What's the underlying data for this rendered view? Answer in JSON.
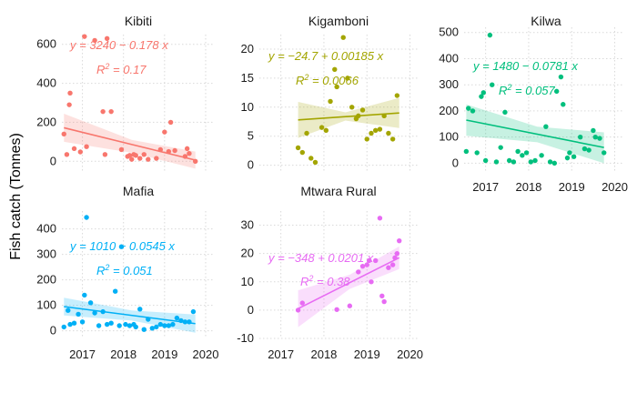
{
  "chart_data": {
    "type": "scatter",
    "ylabel": "Fish catch (Tonnes)",
    "panels": [
      {
        "title": "Kibiti",
        "color": "#F8766D",
        "equation": "y = 3240 − 0.178 x",
        "r2_value": "= 0.17",
        "xlim": [
          2016.5,
          2020.2
        ],
        "ylim": [
          -50,
          650
        ],
        "xticks": [
          2017,
          2018,
          2019,
          2020
        ],
        "xtick_labels": [],
        "yticks": [
          0,
          200,
          400,
          600
        ],
        "fit": {
          "x": [
            2016.55,
            2019.75
          ],
          "y": [
            172,
            6
          ],
          "band_lo": [
            100,
            -38
          ],
          "band_hi": [
            244,
            50
          ],
          "band_mid": [
            2018.2,
            44,
            110
          ]
        },
        "points": [
          [
            2016.55,
            140
          ],
          [
            2016.62,
            35
          ],
          [
            2016.68,
            290
          ],
          [
            2016.7,
            350
          ],
          [
            2016.8,
            65
          ],
          [
            2016.95,
            48
          ],
          [
            2017.05,
            640
          ],
          [
            2017.1,
            75
          ],
          [
            2017.3,
            620
          ],
          [
            2017.5,
            255
          ],
          [
            2017.55,
            35
          ],
          [
            2017.6,
            630
          ],
          [
            2017.7,
            255
          ],
          [
            2017.95,
            60
          ],
          [
            2018.1,
            25
          ],
          [
            2018.15,
            30
          ],
          [
            2018.2,
            10
          ],
          [
            2018.25,
            35
          ],
          [
            2018.3,
            30
          ],
          [
            2018.4,
            15
          ],
          [
            2018.5,
            35
          ],
          [
            2018.6,
            10
          ],
          [
            2018.8,
            15
          ],
          [
            2018.9,
            60
          ],
          [
            2019.0,
            150
          ],
          [
            2019.1,
            50
          ],
          [
            2019.15,
            200
          ],
          [
            2019.25,
            55
          ],
          [
            2019.5,
            25
          ],
          [
            2019.55,
            65
          ],
          [
            2019.6,
            40
          ],
          [
            2019.75,
            0
          ]
        ]
      },
      {
        "title": "Kigamboni",
        "color": "#A3A500",
        "equation": "y = −24.7 + 0.00185 x",
        "r2_value": "= 0.0066",
        "xlim": [
          2016.5,
          2020.2
        ],
        "ylim": [
          -1,
          22.5
        ],
        "xticks": [
          2017,
          2018,
          2019,
          2020
        ],
        "xtick_labels": [],
        "yticks": [
          0,
          5,
          10,
          15,
          20
        ],
        "fit": {
          "x": [
            2017.4,
            2019.75
          ],
          "y": [
            7.8,
            9.0
          ],
          "band_lo": [
            4.7,
            6.4
          ],
          "band_hi": [
            10.9,
            11.6
          ],
          "band_mid": [
            2018.5,
            7.7,
            9.1
          ]
        },
        "points": [
          [
            2017.4,
            3.0
          ],
          [
            2017.5,
            2.2
          ],
          [
            2017.6,
            5.5
          ],
          [
            2017.7,
            1.2
          ],
          [
            2017.8,
            0.5
          ],
          [
            2017.95,
            6.5
          ],
          [
            2018.05,
            6.0
          ],
          [
            2018.15,
            11.0
          ],
          [
            2018.25,
            16.5
          ],
          [
            2018.3,
            13.5
          ],
          [
            2018.45,
            22.0
          ],
          [
            2018.55,
            15.0
          ],
          [
            2018.65,
            10.0
          ],
          [
            2018.75,
            8.0
          ],
          [
            2018.8,
            8.5
          ],
          [
            2018.9,
            9.5
          ],
          [
            2019.0,
            4.5
          ],
          [
            2019.1,
            5.5
          ],
          [
            2019.2,
            6.0
          ],
          [
            2019.3,
            6.2
          ],
          [
            2019.4,
            8.5
          ],
          [
            2019.5,
            5.5
          ],
          [
            2019.6,
            4.5
          ],
          [
            2019.7,
            12.0
          ]
        ]
      },
      {
        "title": "Kilwa",
        "color": "#00BF7D",
        "equation": "y = 1480 − 0.0781 x",
        "r2_value": "= 0.057",
        "xlim": [
          2016.5,
          2020.2
        ],
        "ylim": [
          -30,
          520
        ],
        "xticks": [
          2017,
          2018,
          2019,
          2020
        ],
        "xtick_labels": [
          "2017",
          "2018",
          "2019",
          "2020"
        ],
        "yticks": [
          0,
          100,
          200,
          300,
          400,
          500
        ],
        "fit": {
          "x": [
            2016.55,
            2019.75
          ],
          "y": [
            165,
            60
          ],
          "band_lo": [
            105,
            0
          ],
          "band_hi": [
            225,
            118
          ],
          "band_mid": [
            2018.2,
            80,
            140
          ]
        },
        "points": [
          [
            2016.55,
            45
          ],
          [
            2016.6,
            210
          ],
          [
            2016.7,
            200
          ],
          [
            2016.8,
            40
          ],
          [
            2016.9,
            255
          ],
          [
            2016.95,
            270
          ],
          [
            2017.0,
            10
          ],
          [
            2017.1,
            490
          ],
          [
            2017.15,
            300
          ],
          [
            2017.25,
            5
          ],
          [
            2017.35,
            60
          ],
          [
            2017.45,
            195
          ],
          [
            2017.55,
            10
          ],
          [
            2017.65,
            5
          ],
          [
            2017.75,
            45
          ],
          [
            2017.85,
            30
          ],
          [
            2017.95,
            40
          ],
          [
            2018.05,
            5
          ],
          [
            2018.15,
            10
          ],
          [
            2018.3,
            30
          ],
          [
            2018.4,
            140
          ],
          [
            2018.5,
            5
          ],
          [
            2018.6,
            0
          ],
          [
            2018.65,
            275
          ],
          [
            2018.75,
            330
          ],
          [
            2018.8,
            225
          ],
          [
            2018.9,
            20
          ],
          [
            2018.95,
            40
          ],
          [
            2019.05,
            25
          ],
          [
            2019.2,
            100
          ],
          [
            2019.3,
            55
          ],
          [
            2019.4,
            50
          ],
          [
            2019.5,
            125
          ],
          [
            2019.55,
            100
          ],
          [
            2019.65,
            95
          ],
          [
            2019.75,
            40
          ]
        ]
      },
      {
        "title": "Mafia",
        "color": "#00B0F6",
        "equation": "y = 1010 − 0.0545 x",
        "r2_value": "= 0.051",
        "xlim": [
          2016.5,
          2020.2
        ],
        "ylim": [
          -30,
          470
        ],
        "xticks": [
          2017,
          2018,
          2019,
          2020
        ],
        "xtick_labels": [
          "2017",
          "2018",
          "2019",
          "2020"
        ],
        "yticks": [
          0,
          100,
          200,
          300,
          400
        ],
        "fit": {
          "x": [
            2016.55,
            2019.75
          ],
          "y": [
            95,
            28
          ],
          "band_lo": [
            60,
            -8
          ],
          "band_hi": [
            130,
            64
          ],
          "band_mid": [
            2018.2,
            40,
            80
          ]
        },
        "points": [
          [
            2016.55,
            15
          ],
          [
            2016.65,
            80
          ],
          [
            2016.7,
            25
          ],
          [
            2016.8,
            30
          ],
          [
            2016.9,
            65
          ],
          [
            2017.0,
            35
          ],
          [
            2017.05,
            140
          ],
          [
            2017.1,
            445
          ],
          [
            2017.2,
            110
          ],
          [
            2017.3,
            70
          ],
          [
            2017.4,
            20
          ],
          [
            2017.5,
            75
          ],
          [
            2017.6,
            25
          ],
          [
            2017.7,
            30
          ],
          [
            2017.8,
            155
          ],
          [
            2017.9,
            20
          ],
          [
            2017.95,
            330
          ],
          [
            2018.05,
            25
          ],
          [
            2018.15,
            20
          ],
          [
            2018.25,
            25
          ],
          [
            2018.3,
            15
          ],
          [
            2018.4,
            85
          ],
          [
            2018.5,
            5
          ],
          [
            2018.6,
            45
          ],
          [
            2018.7,
            10
          ],
          [
            2018.8,
            15
          ],
          [
            2018.9,
            25
          ],
          [
            2019.0,
            20
          ],
          [
            2019.1,
            20
          ],
          [
            2019.2,
            25
          ],
          [
            2019.3,
            50
          ],
          [
            2019.4,
            40
          ],
          [
            2019.5,
            35
          ],
          [
            2019.6,
            35
          ],
          [
            2019.7,
            75
          ]
        ]
      },
      {
        "title": "Mtwara Rural",
        "color": "#E76BF3",
        "equation": "y = −348 + 0.0201 x",
        "r2_value": "= 0.38",
        "xlim": [
          2016.5,
          2020.2
        ],
        "ylim": [
          -10,
          35
        ],
        "xticks": [
          2017,
          2018,
          2019,
          2020
        ],
        "xtick_labels": [
          "2017",
          "2018",
          "2019",
          "2020"
        ],
        "yticks": [
          -10,
          0,
          10,
          20,
          30
        ],
        "fit": {
          "x": [
            2017.4,
            2019.75
          ],
          "y": [
            0.5,
            18.5
          ],
          "band_lo": [
            -6,
            14.5
          ],
          "band_hi": [
            7,
            22.5
          ],
          "band_mid": [
            2018.6,
            7.5,
            12.5
          ]
        },
        "points": [
          [
            2017.4,
            0.0
          ],
          [
            2017.5,
            2.5
          ],
          [
            2018.3,
            0.2
          ],
          [
            2018.6,
            1.5
          ],
          [
            2018.8,
            13.5
          ],
          [
            2018.9,
            15.5
          ],
          [
            2019.0,
            16.0
          ],
          [
            2019.05,
            17.5
          ],
          [
            2019.1,
            10.0
          ],
          [
            2019.2,
            17.5
          ],
          [
            2019.3,
            32.5
          ],
          [
            2019.35,
            5.0
          ],
          [
            2019.4,
            3.0
          ],
          [
            2019.5,
            15.0
          ],
          [
            2019.6,
            16.0
          ],
          [
            2019.65,
            18.5
          ],
          [
            2019.7,
            20.0
          ],
          [
            2019.75,
            24.5
          ]
        ]
      }
    ]
  }
}
